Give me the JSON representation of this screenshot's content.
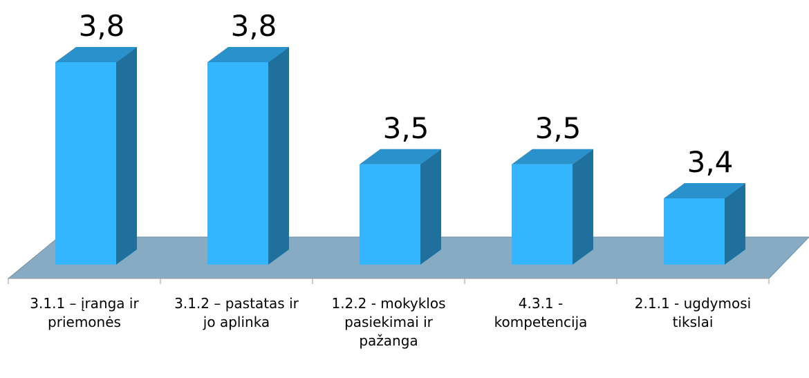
{
  "chart_data": {
    "type": "bar3d",
    "categories": [
      "3.1.1 – įranga ir priemonės",
      "3.1.2 – pastatas ir jo aplinka",
      "1.2.2 - mokyklos pasiekimai ir pažanga",
      "4.3.1 - kompetencija",
      "2.1.1 - ugdymosi tikslai"
    ],
    "values": [
      3.8,
      3.8,
      3.5,
      3.5,
      3.4
    ],
    "value_labels": [
      "3,8",
      "3,8",
      "3,5",
      "3,5",
      "3,4"
    ],
    "color": "#33b5ff"
  }
}
